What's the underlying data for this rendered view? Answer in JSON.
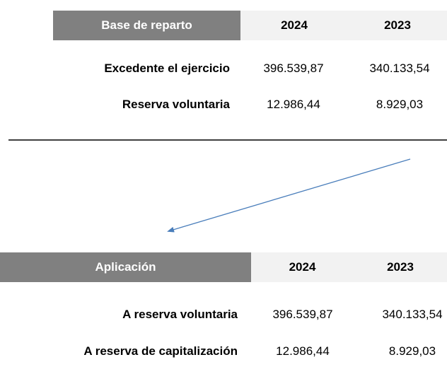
{
  "tables": [
    {
      "header": [
        "Base de reparto",
        "2024",
        "2023"
      ],
      "rows": [
        [
          "Excedente el ejercicio",
          "396.539,87",
          "340.133,54"
        ],
        [
          "Reserva voluntaria",
          "12.986,44",
          "8.929,03"
        ]
      ]
    },
    {
      "header": [
        "Aplicación",
        "2024",
        "2023"
      ],
      "rows": [
        [
          "A reserva voluntaria",
          "396.539,87",
          "340.133,54"
        ],
        [
          "A reserva de capitalización",
          "12.986,44",
          "8.929,03"
        ]
      ]
    }
  ]
}
